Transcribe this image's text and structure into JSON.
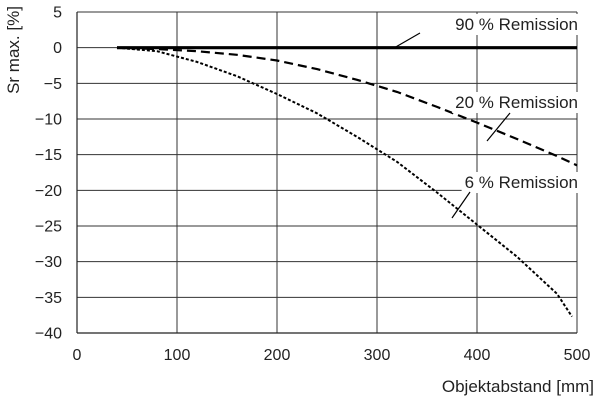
{
  "chart_data": {
    "type": "line",
    "title": "",
    "xlabel": "Objektabstand [mm]",
    "ylabel": "Sr max. [%]",
    "xlim": [
      0,
      500
    ],
    "ylim": [
      -40,
      5
    ],
    "xticks": [
      0,
      100,
      200,
      300,
      400,
      500
    ],
    "yticks": [
      5,
      0,
      -5,
      -10,
      -15,
      -20,
      -25,
      -30,
      -35,
      -40
    ],
    "grid": true,
    "legend": "none",
    "series": [
      {
        "name": "90 % Remission",
        "line_style": "solid",
        "color": "#000000",
        "x": [
          40,
          100,
          200,
          300,
          400,
          500
        ],
        "y": [
          0,
          0,
          0,
          0,
          0,
          0
        ]
      },
      {
        "name": "20 % Remission",
        "line_style": "dashed",
        "color": "#000000",
        "x": [
          40,
          80,
          120,
          160,
          200,
          240,
          280,
          320,
          360,
          400,
          440,
          480,
          500
        ],
        "y": [
          0,
          -0.2,
          -0.5,
          -1.0,
          -1.8,
          -3.0,
          -4.5,
          -6.2,
          -8.3,
          -10.5,
          -12.8,
          -15.2,
          -16.5
        ]
      },
      {
        "name": "6 % Remission",
        "line_style": "dotted",
        "color": "#000000",
        "x": [
          40,
          80,
          120,
          160,
          200,
          240,
          280,
          320,
          360,
          400,
          440,
          480,
          495
        ],
        "y": [
          0,
          -0.5,
          -2.0,
          -4.0,
          -6.5,
          -9.2,
          -12.5,
          -16.0,
          -20.3,
          -24.8,
          -29.3,
          -34.5,
          -37.7
        ]
      }
    ],
    "annotations": [
      {
        "text": "90 % Remission",
        "series": 0
      },
      {
        "text": "20 % Remission",
        "series": 1
      },
      {
        "text": "6 % Remission",
        "series": 2
      }
    ]
  }
}
